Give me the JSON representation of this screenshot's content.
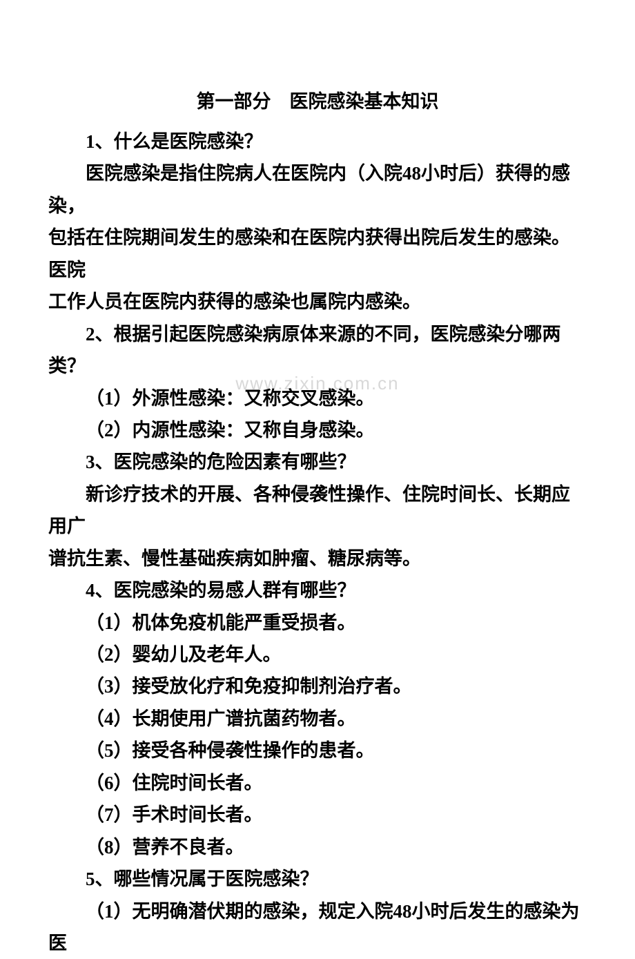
{
  "title": "第一部分　医院感染基本知识",
  "watermark": "www.zixin.com.cn",
  "lines": [
    {
      "text": "1、什么是医院感染？",
      "indent": true
    },
    {
      "text": "医院感染是指住院病人在医院内（入院48小时后）获得的感染，",
      "indent": true
    },
    {
      "text": "包括在住院期间发生的感染和在医院内获得出院后发生的感染。医院",
      "indent": false
    },
    {
      "text": "工作人员在医院内获得的感染也属院内感染。",
      "indent": false
    },
    {
      "text": "2、根据引起医院感染病原体来源的不同，医院感染分哪两类？",
      "indent": true
    },
    {
      "text": "（1）外源性感染：又称交叉感染。",
      "indent": true
    },
    {
      "text": "（2）内源性感染：又称自身感染。",
      "indent": true
    },
    {
      "text": "3、医院感染的危险因素有哪些？",
      "indent": true
    },
    {
      "text": "新诊疗技术的开展、各种侵袭性操作、住院时间长、长期应用广",
      "indent": true
    },
    {
      "text": "谱抗生素、慢性基础疾病如肿瘤、糖尿病等。",
      "indent": false
    },
    {
      "text": "4、医院感染的易感人群有哪些？",
      "indent": true
    },
    {
      "text": "（1）机体免疫机能严重受损者。",
      "indent": true
    },
    {
      "text": "（2）婴幼儿及老年人。",
      "indent": true
    },
    {
      "text": "（3）接受放化疗和免疫抑制剂治疗者。",
      "indent": true
    },
    {
      "text": "（4）长期使用广谱抗菌药物者。",
      "indent": true
    },
    {
      "text": "（5）接受各种侵袭性操作的患者。",
      "indent": true
    },
    {
      "text": "（6）住院时间长者。",
      "indent": true
    },
    {
      "text": "（7）手术时间长者。",
      "indent": true
    },
    {
      "text": "（8）营养不良者。",
      "indent": true
    },
    {
      "text": "5、哪些情况属于医院感染？",
      "indent": true
    },
    {
      "text": "（1）无明确潜伏期的感染，规定入院48小时后发生的感染为医",
      "indent": true
    }
  ]
}
